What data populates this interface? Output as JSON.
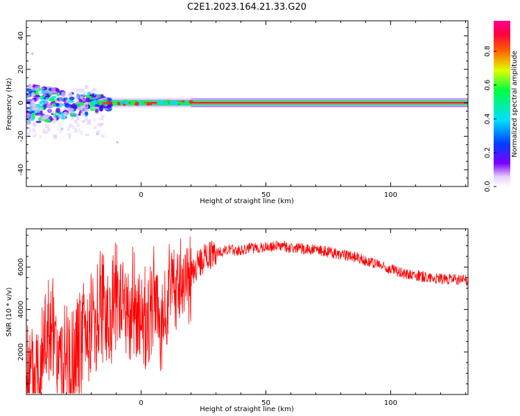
{
  "chart_data": [
    {
      "type": "heatmap",
      "title": "C2E1.2023.164.21.33.G20",
      "xlabel": "Height of straight line (km)",
      "ylabel": "Frequency (Hz)",
      "xlim": [
        -46,
        131
      ],
      "ylim": [
        -50,
        49
      ],
      "xticks": [
        "0",
        "50",
        "100"
      ],
      "yticks": [
        "40",
        "20",
        "0",
        "-20",
        "-40"
      ],
      "grid": false,
      "colorbar": {
        "label": "Normalized spectral amplitude",
        "range": [
          0.0,
          0.98
        ],
        "ticks": [
          "0.0",
          "0.2",
          "0.4",
          "0.6",
          "0.8"
        ],
        "colormap": [
          "#ffffff",
          "#e8ccff",
          "#7a00ff",
          "#0040ff",
          "#00e0ff",
          "#00ff40",
          "#e0ff00",
          "#ff6000",
          "#ff0040",
          "#ff0090"
        ]
      },
      "description_values": {
        "line_frequency_hz": 0,
        "max_amplitude": 0.95
      }
    },
    {
      "type": "line",
      "xlabel": "Height of straight line (km)",
      "ylabel": "SNR (10 * v/v)",
      "xlim": [
        -46,
        131
      ],
      "ylim": [
        0,
        7800
      ],
      "xticks": [
        "0",
        "50",
        "100"
      ],
      "yticks": [
        "2000",
        "4000",
        "6000"
      ],
      "grid": false,
      "color": "#ff0000",
      "series": [
        {
          "x": [
            -46,
            -43,
            -40,
            -37,
            -34,
            -31,
            -28,
            -25,
            -22,
            -19,
            -16,
            -13,
            -10,
            -7,
            -4,
            -1,
            2,
            5,
            8,
            11,
            14,
            17,
            20,
            23,
            26,
            30,
            35,
            40,
            45,
            50,
            55,
            60,
            65,
            70,
            75,
            80,
            85,
            90,
            95,
            100,
            105,
            110,
            115,
            120,
            125,
            131
          ],
          "y": [
            600,
            800,
            2000,
            3200,
            1500,
            700,
            1200,
            2000,
            3200,
            3500,
            4200,
            3800,
            4600,
            4000,
            3400,
            3800,
            3000,
            4500,
            2600,
            5000,
            5200,
            5400,
            5500,
            6200,
            6500,
            6700,
            6800,
            6800,
            6900,
            6950,
            7000,
            6900,
            6850,
            6800,
            6700,
            6600,
            6500,
            6300,
            6100,
            5900,
            5700,
            5600,
            5500,
            5450,
            5400,
            5400
          ]
        }
      ]
    }
  ]
}
